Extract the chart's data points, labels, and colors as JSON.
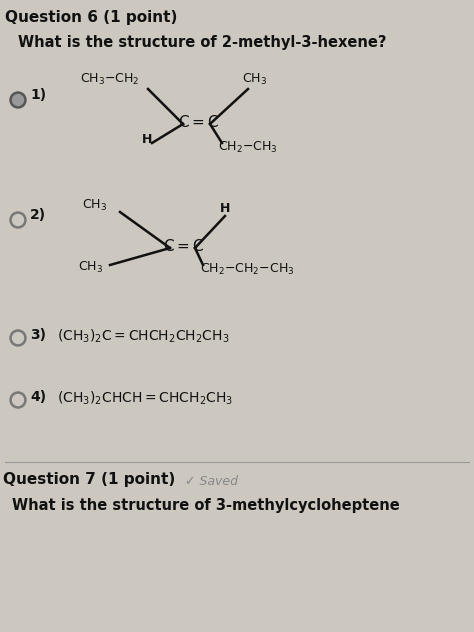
{
  "bg_color": "#ccc8c0",
  "title_bold": "Question 6 (1 point)",
  "subtitle": "What is the structure of 2-methyl-3-hexene?",
  "q7_title": "Question 7 (1 point)",
  "q7_saved": "Saved",
  "q7_subtitle": "What is the structure of 3-methylcycloheptene",
  "font_color": "#111111",
  "radio_outline": "#777777",
  "radio_fill_1": "#666666",
  "radio_fill_empty": "#ccc8c0",
  "lw": 1.8
}
